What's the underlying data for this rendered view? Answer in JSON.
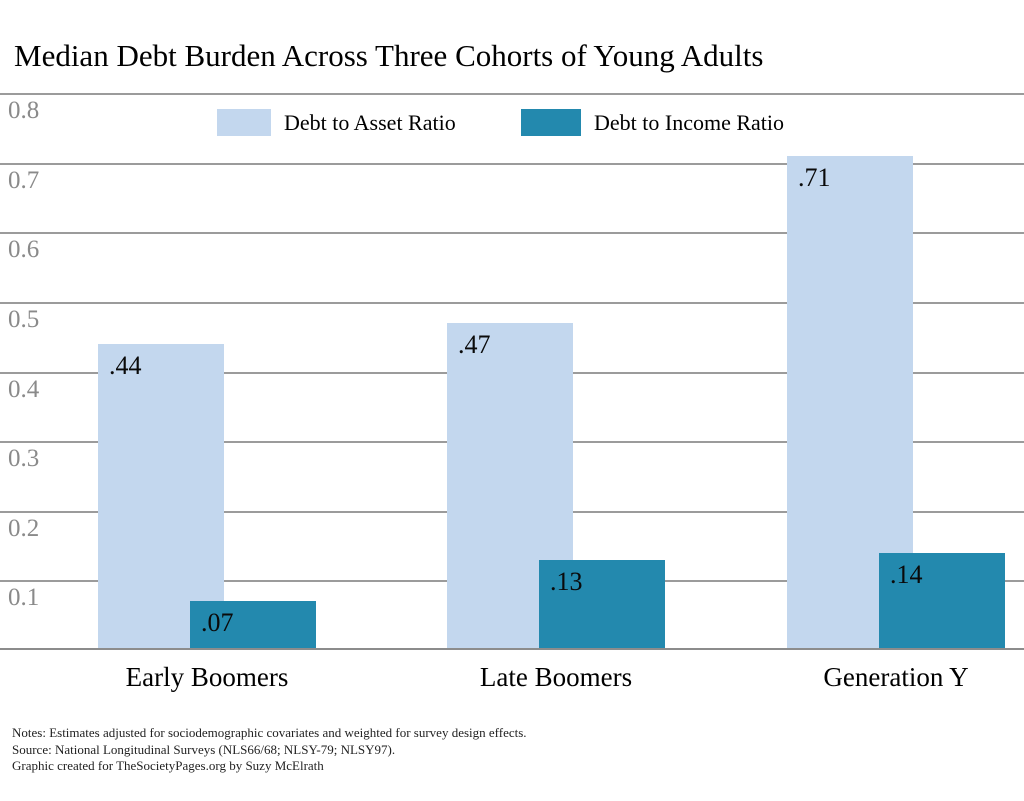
{
  "title": "Median Debt Burden Across Three Cohorts of Young Adults",
  "legend": [
    {
      "label": "Debt to Asset Ratio",
      "color": "#c3d7ee"
    },
    {
      "label": "Debt to Income Ratio",
      "color": "#2389ae"
    }
  ],
  "chart_data": {
    "type": "bar",
    "title": "Median Debt Burden Across Three Cohorts of Young Adults",
    "categories": [
      "Early Boomers",
      "Late Boomers",
      "Generation Y"
    ],
    "series": [
      {
        "name": "Debt to Asset Ratio",
        "color": "#c3d7ee",
        "values": [
          0.44,
          0.47,
          0.71
        ],
        "labels": [
          ".44",
          ".47",
          ".71"
        ]
      },
      {
        "name": "Debt to Income Ratio",
        "color": "#2389ae",
        "values": [
          0.07,
          0.13,
          0.14
        ],
        "labels": [
          ".07",
          ".13",
          ".14"
        ]
      }
    ],
    "ylim": [
      0,
      0.8
    ],
    "yticks": [
      "0.8",
      "0.7",
      "0.6",
      "0.5",
      "0.4",
      "0.3",
      "0.2",
      "0.1"
    ],
    "ytick_values": [
      0.8,
      0.7,
      0.6,
      0.5,
      0.4,
      0.3,
      0.2,
      0.1
    ],
    "grid": true,
    "legend_position": "top-inside"
  },
  "notes": {
    "line1": "Notes: Estimates adjusted for sociodemographic covariates and weighted for survey design effects.",
    "line2": "Source: National Longitudinal Surveys (NLS66/68; NLSY-79; NLSY97).",
    "line3": "Graphic created for TheSocietyPages.org by Suzy McElrath"
  },
  "colors": {
    "light_series": "#c3d7ee",
    "dark_series": "#2389ae",
    "gridline": "#9b9b9b",
    "axis_line": "#8c8c8c",
    "tick_label": "#8a8a8a"
  }
}
